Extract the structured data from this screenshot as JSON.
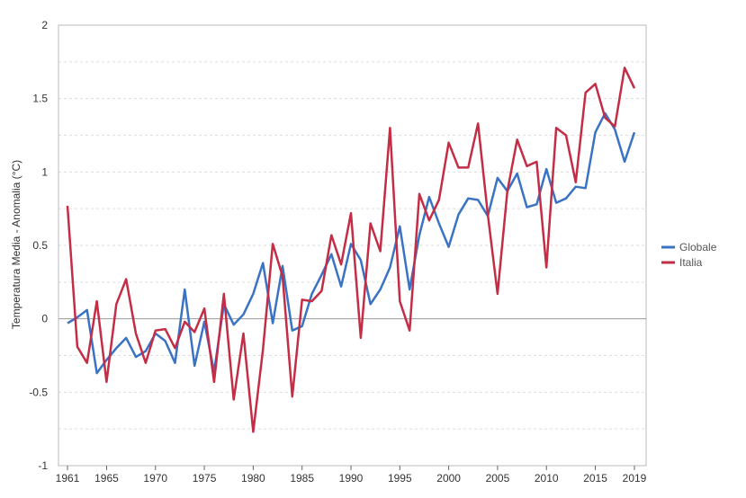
{
  "chart_data": {
    "type": "line",
    "title": "",
    "xlabel": "",
    "ylabel": "Temperatura Media - Anomalia (°C)",
    "xlim": [
      1961,
      2019
    ],
    "ylim": [
      -1,
      2
    ],
    "grid": true,
    "legend_position": "right",
    "x_tick_labels": [
      "1961",
      "1965",
      "1970",
      "1975",
      "1980",
      "1985",
      "1990",
      "1995",
      "2000",
      "2005",
      "2010",
      "2015",
      "2019"
    ],
    "x_tick_values": [
      1961,
      1965,
      1970,
      1975,
      1980,
      1985,
      1990,
      1995,
      2000,
      2005,
      2010,
      2015,
      2019
    ],
    "y_tick_labels": [
      "2",
      "1.5",
      "1",
      "0.5",
      "0",
      "-0.5",
      "-1"
    ],
    "y_tick_values": [
      2,
      1.5,
      1,
      0.5,
      0,
      -0.5,
      -1
    ],
    "x": [
      1961,
      1962,
      1963,
      1964,
      1965,
      1966,
      1967,
      1968,
      1969,
      1970,
      1971,
      1972,
      1973,
      1974,
      1975,
      1976,
      1977,
      1978,
      1979,
      1980,
      1981,
      1982,
      1983,
      1984,
      1985,
      1986,
      1987,
      1988,
      1989,
      1990,
      1991,
      1992,
      1993,
      1994,
      1995,
      1996,
      1997,
      1998,
      1999,
      2000,
      2001,
      2002,
      2003,
      2004,
      2005,
      2006,
      2007,
      2008,
      2009,
      2010,
      2011,
      2012,
      2013,
      2014,
      2015,
      2016,
      2017,
      2018,
      2019
    ],
    "series": [
      {
        "name": "Globale",
        "color": "#3a73c4",
        "values": [
          -0.03,
          0.01,
          0.06,
          -0.37,
          -0.28,
          -0.2,
          -0.13,
          -0.26,
          -0.22,
          -0.1,
          -0.15,
          -0.3,
          0.2,
          -0.32,
          -0.02,
          -0.36,
          0.1,
          -0.04,
          0.03,
          0.17,
          0.38,
          -0.03,
          0.36,
          -0.08,
          -0.05,
          0.17,
          0.3,
          0.44,
          0.22,
          0.51,
          0.4,
          0.1,
          0.2,
          0.35,
          0.63,
          0.2,
          0.57,
          0.83,
          0.65,
          0.49,
          0.71,
          0.82,
          0.81,
          0.7,
          0.96,
          0.87,
          0.99,
          0.76,
          0.78,
          1.02,
          0.79,
          0.82,
          0.9,
          0.89,
          1.27,
          1.4,
          1.29,
          1.07,
          1.27
        ]
      },
      {
        "name": "Italia",
        "color": "#c42d46",
        "values": [
          0.77,
          -0.19,
          -0.3,
          0.12,
          -0.43,
          0.1,
          0.27,
          -0.1,
          -0.3,
          -0.08,
          -0.07,
          -0.2,
          -0.02,
          -0.09,
          0.07,
          -0.43,
          0.17,
          -0.55,
          -0.1,
          -0.77,
          -0.21,
          0.51,
          0.29,
          -0.53,
          0.13,
          0.12,
          0.19,
          0.57,
          0.37,
          0.72,
          -0.13,
          0.65,
          0.46,
          1.3,
          0.12,
          -0.08,
          0.85,
          0.67,
          0.81,
          1.2,
          1.03,
          1.03,
          1.33,
          0.71,
          0.17,
          0.87,
          1.22,
          1.04,
          1.07,
          0.35,
          1.3,
          1.25,
          0.93,
          1.54,
          1.6,
          1.37,
          1.31,
          1.71,
          1.57
        ]
      }
    ]
  },
  "colors": {
    "grid": "#dddddd",
    "frame": "#bbbbbb",
    "zero_line": "#999999"
  }
}
